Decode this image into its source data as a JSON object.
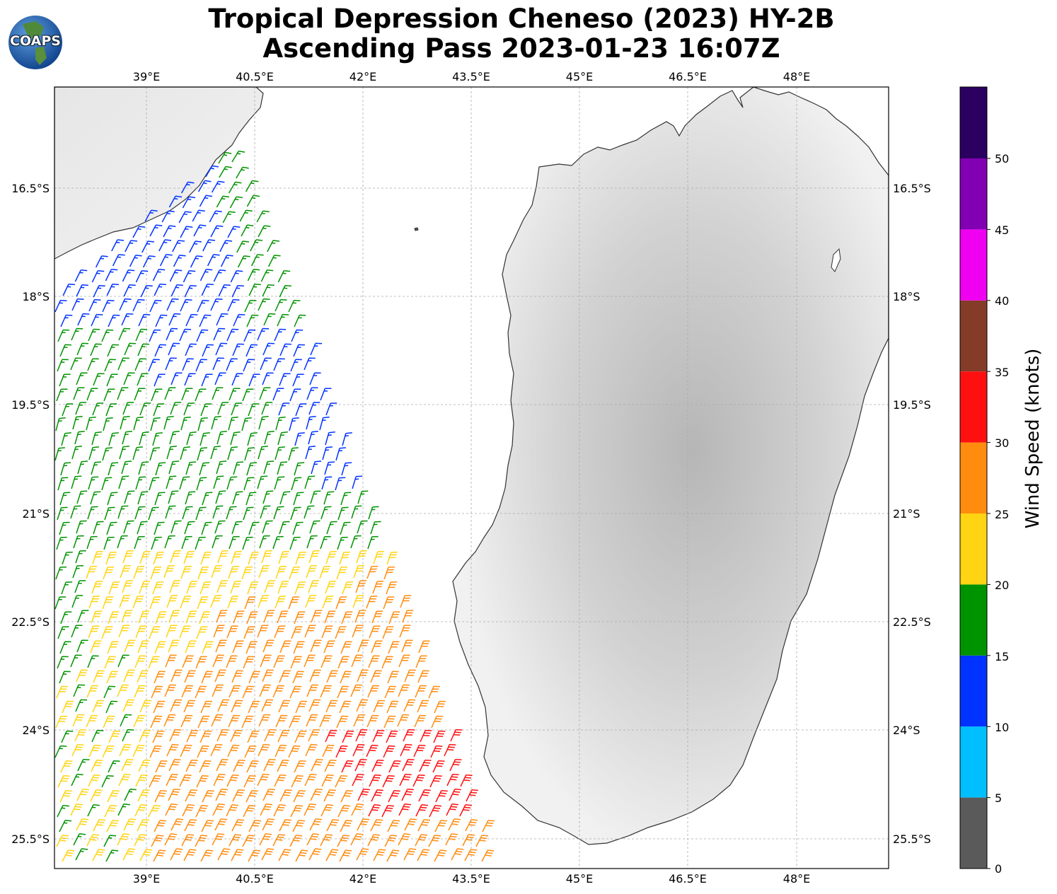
{
  "header": {
    "title_line1": "Tropical Depression Cheneso (2023) HY-2B",
    "title_line2": "Ascending Pass 2023-01-23 16:07Z",
    "logo_text": "COAPS"
  },
  "map": {
    "longitude_ticks": [
      "39°E",
      "40.5°E",
      "42°E",
      "43.5°E",
      "45°E",
      "46.5°E",
      "48°E"
    ],
    "latitude_ticks": [
      "16.5°S",
      "18°S",
      "19.5°S",
      "21°S",
      "22.5°S",
      "24°S",
      "25.5°S"
    ],
    "lon_values": [
      39,
      40.5,
      42,
      43.5,
      45,
      46.5,
      48
    ],
    "lat_values": [
      16.5,
      18,
      19.5,
      21,
      22.5,
      24,
      25.5
    ]
  },
  "colorbar": {
    "label": "Wind Speed (knots)",
    "tick_labels": [
      "0",
      "5",
      "10",
      "15",
      "20",
      "25",
      "30",
      "35",
      "40",
      "45",
      "50"
    ],
    "bins": [
      {
        "range": "0-5",
        "color": "#5a5a5a"
      },
      {
        "range": "5-10",
        "color": "#00bfff"
      },
      {
        "range": "10-15",
        "color": "#0033ff"
      },
      {
        "range": "15-20",
        "color": "#009300"
      },
      {
        "range": "20-25",
        "color": "#ffd412"
      },
      {
        "range": "25-30",
        "color": "#ff8c0f"
      },
      {
        "range": "30-35",
        "color": "#ff1010"
      },
      {
        "range": "35-40",
        "color": "#843c28"
      },
      {
        "range": "40-45",
        "color": "#f000f0"
      },
      {
        "range": "45-50",
        "color": "#8200b4"
      },
      {
        "range": "50+",
        "color": "#2c0060"
      }
    ]
  }
}
